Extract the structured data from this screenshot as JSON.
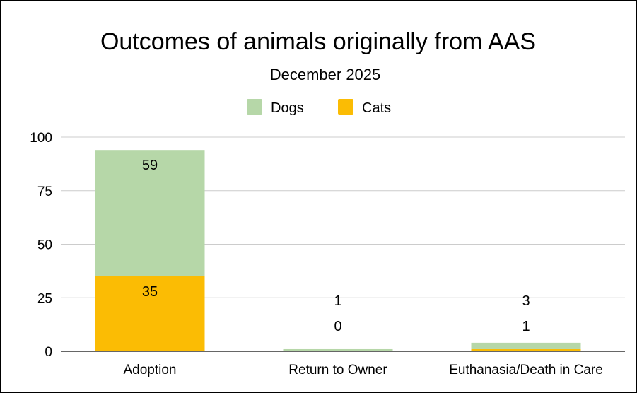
{
  "chart_data": {
    "type": "bar",
    "stacked": true,
    "title": "Outcomes of animals originally from AAS",
    "subtitle": "December 2025",
    "categories": [
      "Adoption",
      "Return to Owner",
      "Euthanasia/Death in Care"
    ],
    "series": [
      {
        "name": "Cats",
        "values": [
          35,
          0,
          1
        ],
        "color": "#fbbc04"
      },
      {
        "name": "Dogs",
        "values": [
          59,
          1,
          3
        ],
        "color": "#b6d7a8"
      }
    ],
    "legend_order": [
      "Dogs",
      "Cats"
    ],
    "legend_position": "top",
    "ylim": [
      0,
      100
    ],
    "yticks": [
      0,
      25,
      50,
      75,
      100
    ],
    "grid": true,
    "gridline_color": "#cccccc",
    "axis_color": "#333333"
  }
}
